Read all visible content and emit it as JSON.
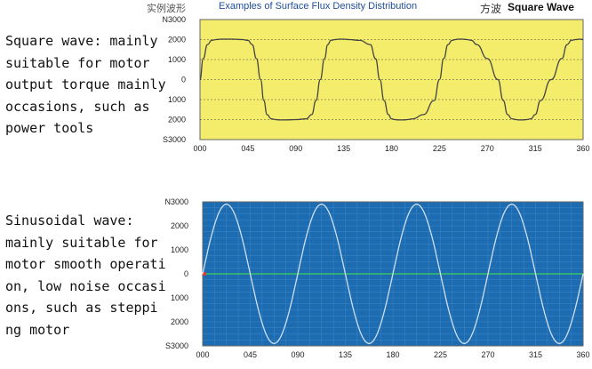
{
  "header": {
    "cn_left": "实例波形",
    "title": "Examples of Surface Flux Density Distribution",
    "cn_right": "方波",
    "wave_name": "Square Wave"
  },
  "descriptions": {
    "square": [
      "Square wave: mainly",
      "suitable for motor",
      "output torque mainly",
      "occasions, such as",
      "power tools"
    ],
    "sine": [
      "Sinusoidal wave:",
      "mainly suitable for",
      "motor smooth operati",
      "on, low noise occasi",
      "ons, such as steppi",
      "ng motor"
    ]
  },
  "chart_data": [
    {
      "type": "line",
      "name": "square-wave-chart",
      "background": "#f4ec6b",
      "line_color": "#444444",
      "grid": true,
      "x_ticks": [
        "000",
        "045",
        "090",
        "135",
        "180",
        "225",
        "270",
        "315",
        "360"
      ],
      "y_ticks": [
        "N3000",
        "2000",
        "1000",
        "0",
        "1000",
        "2000",
        "S3000"
      ],
      "xlim": [
        0,
        360
      ],
      "ylim": [
        -3000,
        3000
      ],
      "series": [
        {
          "x": [
            0,
            3,
            7,
            11,
            15,
            20,
            30,
            40,
            45,
            49,
            53,
            57,
            60,
            63,
            67,
            71,
            75,
            80,
            90,
            100,
            105,
            109,
            113,
            117,
            120,
            123,
            127,
            131,
            135,
            140,
            150,
            160,
            165,
            169,
            173,
            177,
            180,
            183,
            187,
            191,
            195,
            200,
            210,
            220,
            225,
            229,
            233,
            237,
            240,
            243,
            247,
            251,
            255,
            260,
            270,
            280,
            285,
            289,
            293,
            297,
            300,
            303,
            307,
            311,
            315,
            320,
            330,
            340,
            345,
            349,
            353,
            357,
            360
          ],
          "y": [
            0,
            1050,
            1750,
            1960,
            2000,
            2020,
            2020,
            2000,
            1960,
            1750,
            1050,
            0,
            -1050,
            -1750,
            -1960,
            -2000,
            -2020,
            -2020,
            -2000,
            -1960,
            -1750,
            -1050,
            0,
            1050,
            1750,
            1960,
            2000,
            2020,
            2020,
            2000,
            1960,
            1750,
            1050,
            0,
            -1050,
            -1750,
            -1960,
            -2000,
            -2020,
            -2020,
            -2000,
            -1960,
            -1750,
            -1050,
            0,
            1050,
            1750,
            1960,
            2000,
            2020,
            2020,
            2000,
            1960,
            1750,
            1050,
            0,
            -1050,
            -1750,
            -1960,
            -2000,
            -2020,
            -2020,
            -2000,
            -1960,
            -1750,
            -1050,
            0,
            1050,
            1750,
            1960,
            2000,
            2020,
            2000
          ]
        }
      ]
    },
    {
      "type": "line",
      "name": "sine-wave-chart",
      "background": "#1d6bb0",
      "line_color": "#cfdff0",
      "zero_line_color": "#3fd15a",
      "grid": true,
      "x_ticks": [
        "000",
        "045",
        "090",
        "135",
        "180",
        "225",
        "270",
        "315",
        "360"
      ],
      "y_ticks": [
        "N3000",
        "2000",
        "1000",
        "0",
        "1000",
        "2000",
        "S3000"
      ],
      "xlim": [
        0,
        360
      ],
      "ylim": [
        -3000,
        3000
      ],
      "series": [
        {
          "function": "sine",
          "amplitude": 2900,
          "cycles": 4,
          "x_range": [
            0,
            360
          ]
        }
      ]
    }
  ]
}
